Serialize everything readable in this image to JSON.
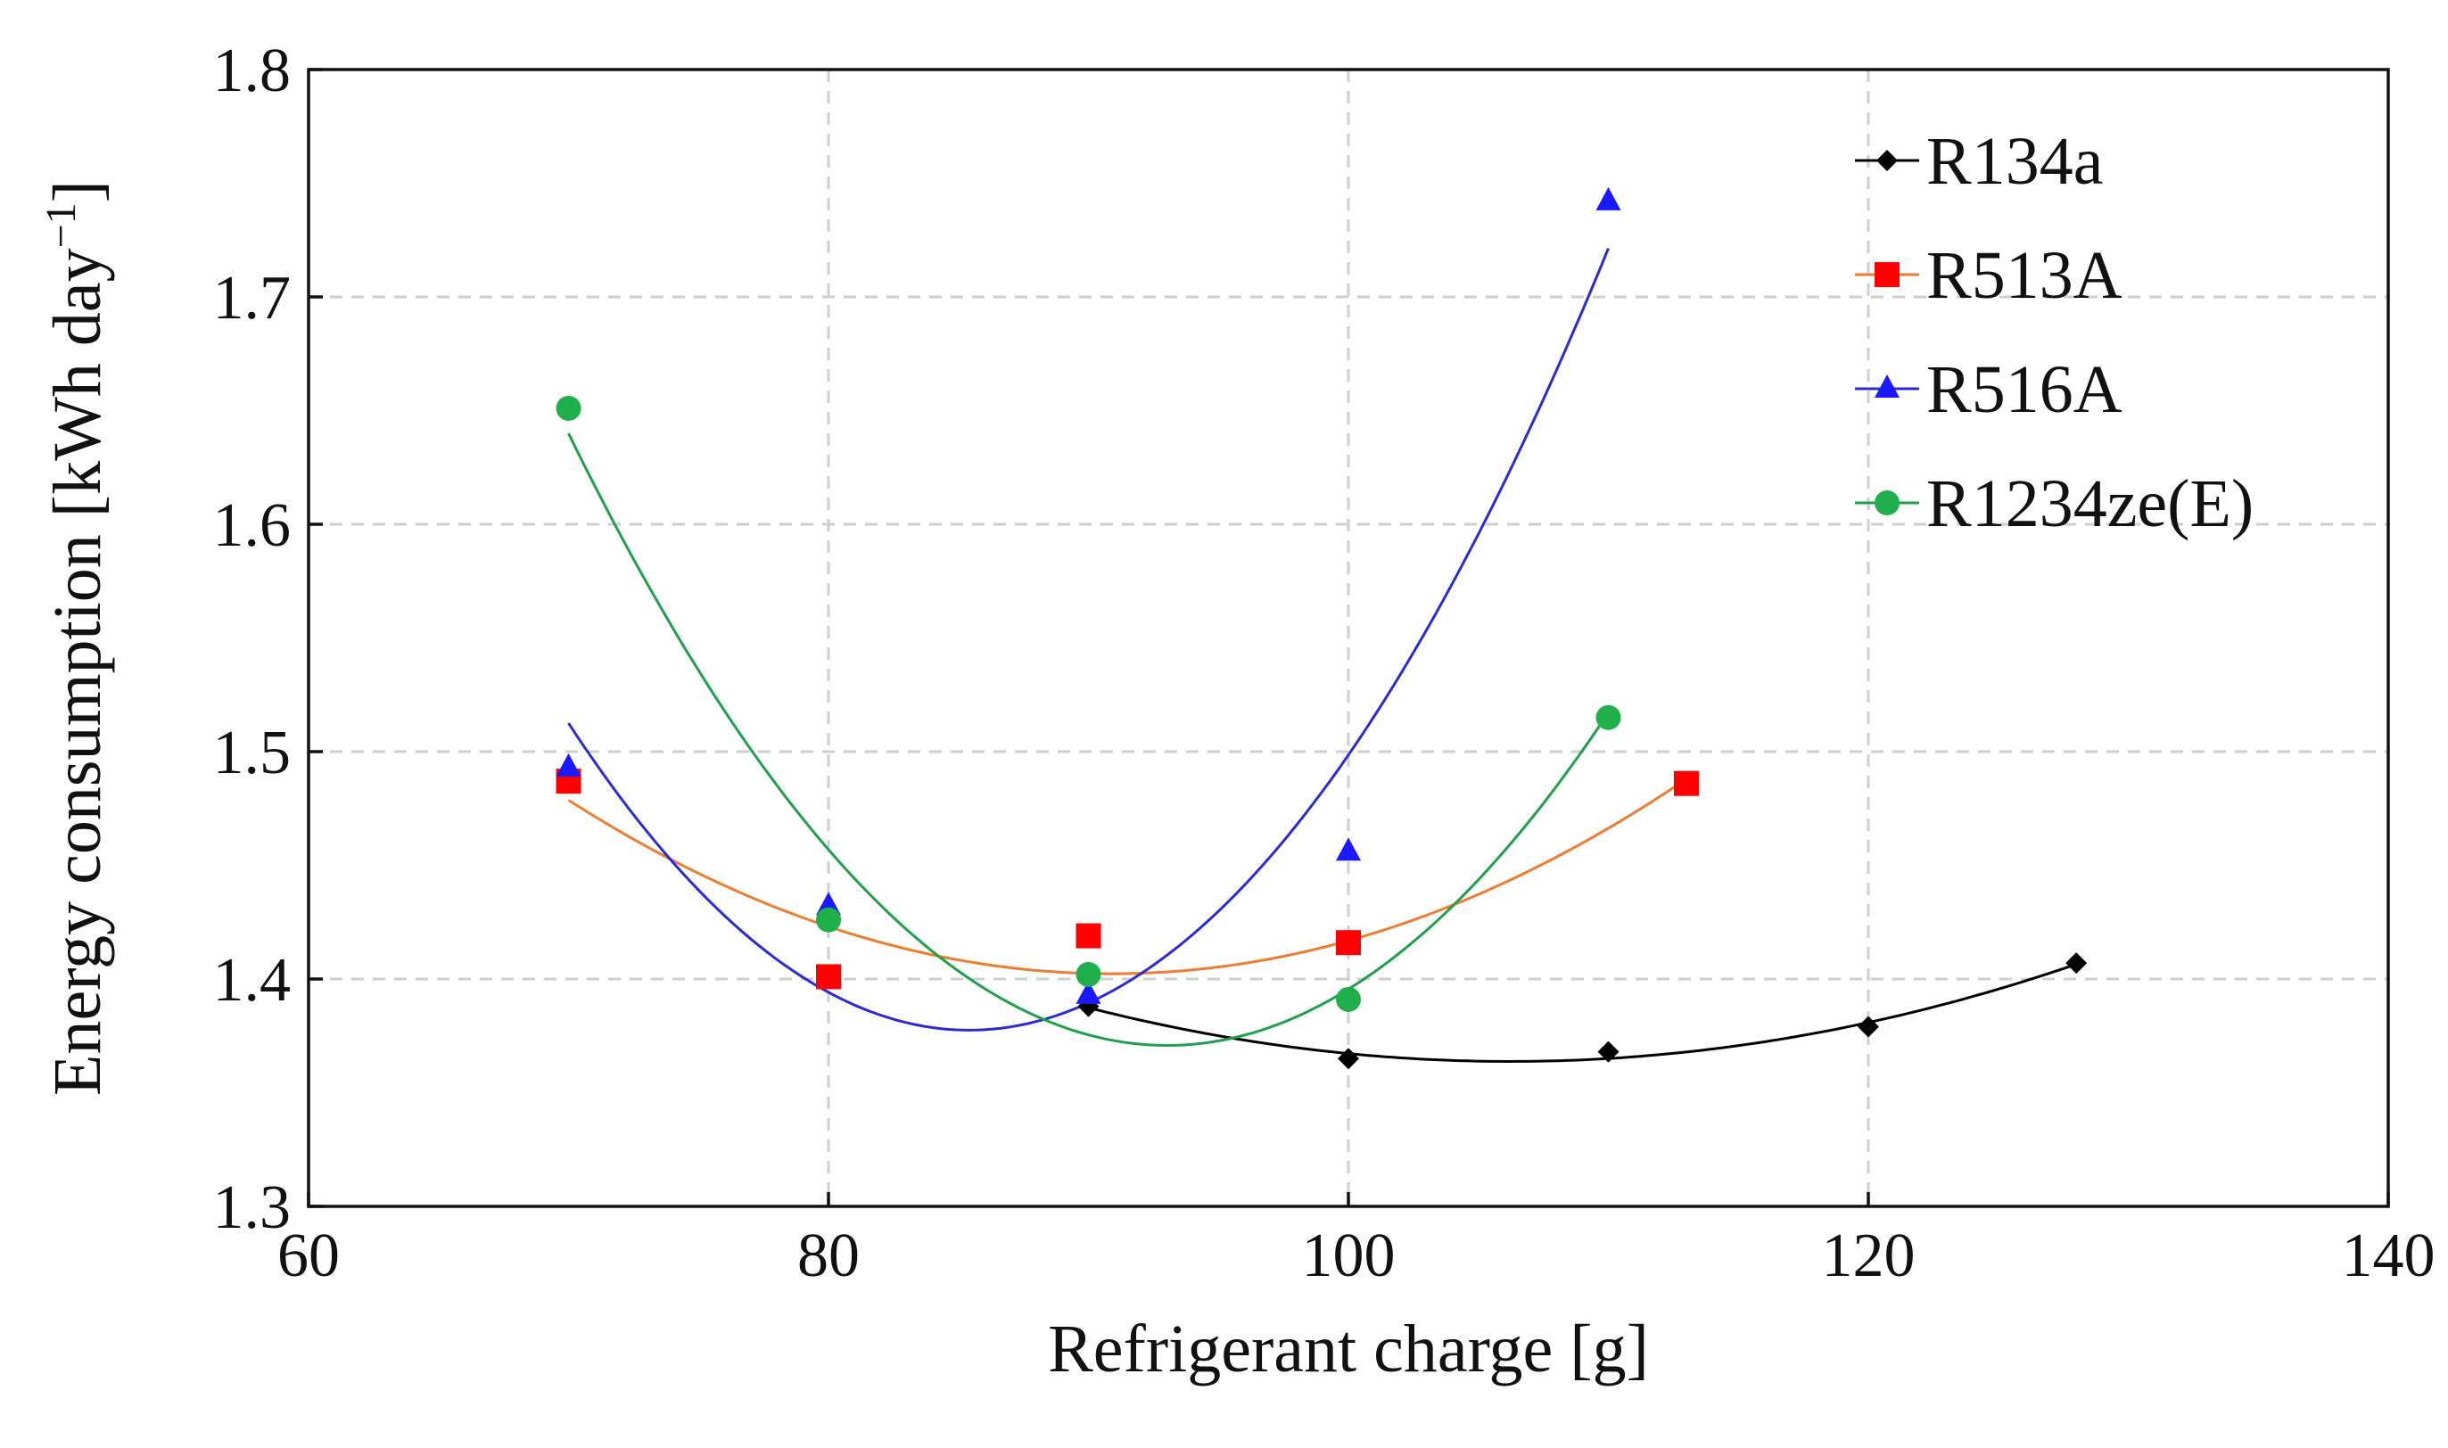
{
  "chart_data": {
    "type": "scatter",
    "title": "",
    "xlabel": "Refrigerant charge [g]",
    "ylabel_main": "Energy consumption  [kWh day",
    "ylabel_sup": "−1",
    "ylabel_close": "]",
    "xlim": [
      60,
      140
    ],
    "ylim": [
      1.3,
      1.8
    ],
    "xticks": [
      60,
      80,
      100,
      120,
      140
    ],
    "xtick_labels": [
      "60",
      "80",
      "100",
      "120",
      "140"
    ],
    "yticks": [
      1.3,
      1.4,
      1.5,
      1.6,
      1.7,
      1.8
    ],
    "ytick_labels": [
      "1.3",
      "1.4",
      "1.5",
      "1.6",
      "1.7",
      "1.8"
    ],
    "grid": true,
    "legend_position": "top-right",
    "series": [
      {
        "name": "R134a",
        "color": "#000000",
        "marker": "diamond",
        "x": [
          90,
          100,
          110,
          120,
          128
        ],
        "y": [
          1.388,
          1.365,
          1.368,
          1.379,
          1.407
        ],
        "trend": "quadratic",
        "trend_range": [
          90,
          128
        ]
      },
      {
        "name": "R513A",
        "color": "#ff0000",
        "line_color": "#ed7d31",
        "marker": "square",
        "x": [
          70,
          80,
          90,
          100,
          113
        ],
        "y": [
          1.487,
          1.401,
          1.419,
          1.416,
          1.486
        ],
        "trend": "quadratic",
        "trend_range": [
          70,
          113
        ]
      },
      {
        "name": "R516A",
        "color": "#1a1aff",
        "line_color": "#2b2bd6",
        "marker": "triangle",
        "x": [
          70,
          80,
          90,
          100,
          110
        ],
        "y": [
          1.493,
          1.432,
          1.393,
          1.456,
          1.742
        ],
        "trend": "quadratic",
        "trend_range": [
          70,
          110
        ]
      },
      {
        "name": "R1234ze(E)",
        "color": "#1fb04b",
        "line_color": "#1fa04b",
        "marker": "circle",
        "x": [
          70,
          80,
          90,
          100,
          110
        ],
        "y": [
          1.651,
          1.426,
          1.402,
          1.391,
          1.515
        ],
        "trend": "quadratic",
        "trend_range": [
          70,
          110
        ]
      }
    ]
  }
}
